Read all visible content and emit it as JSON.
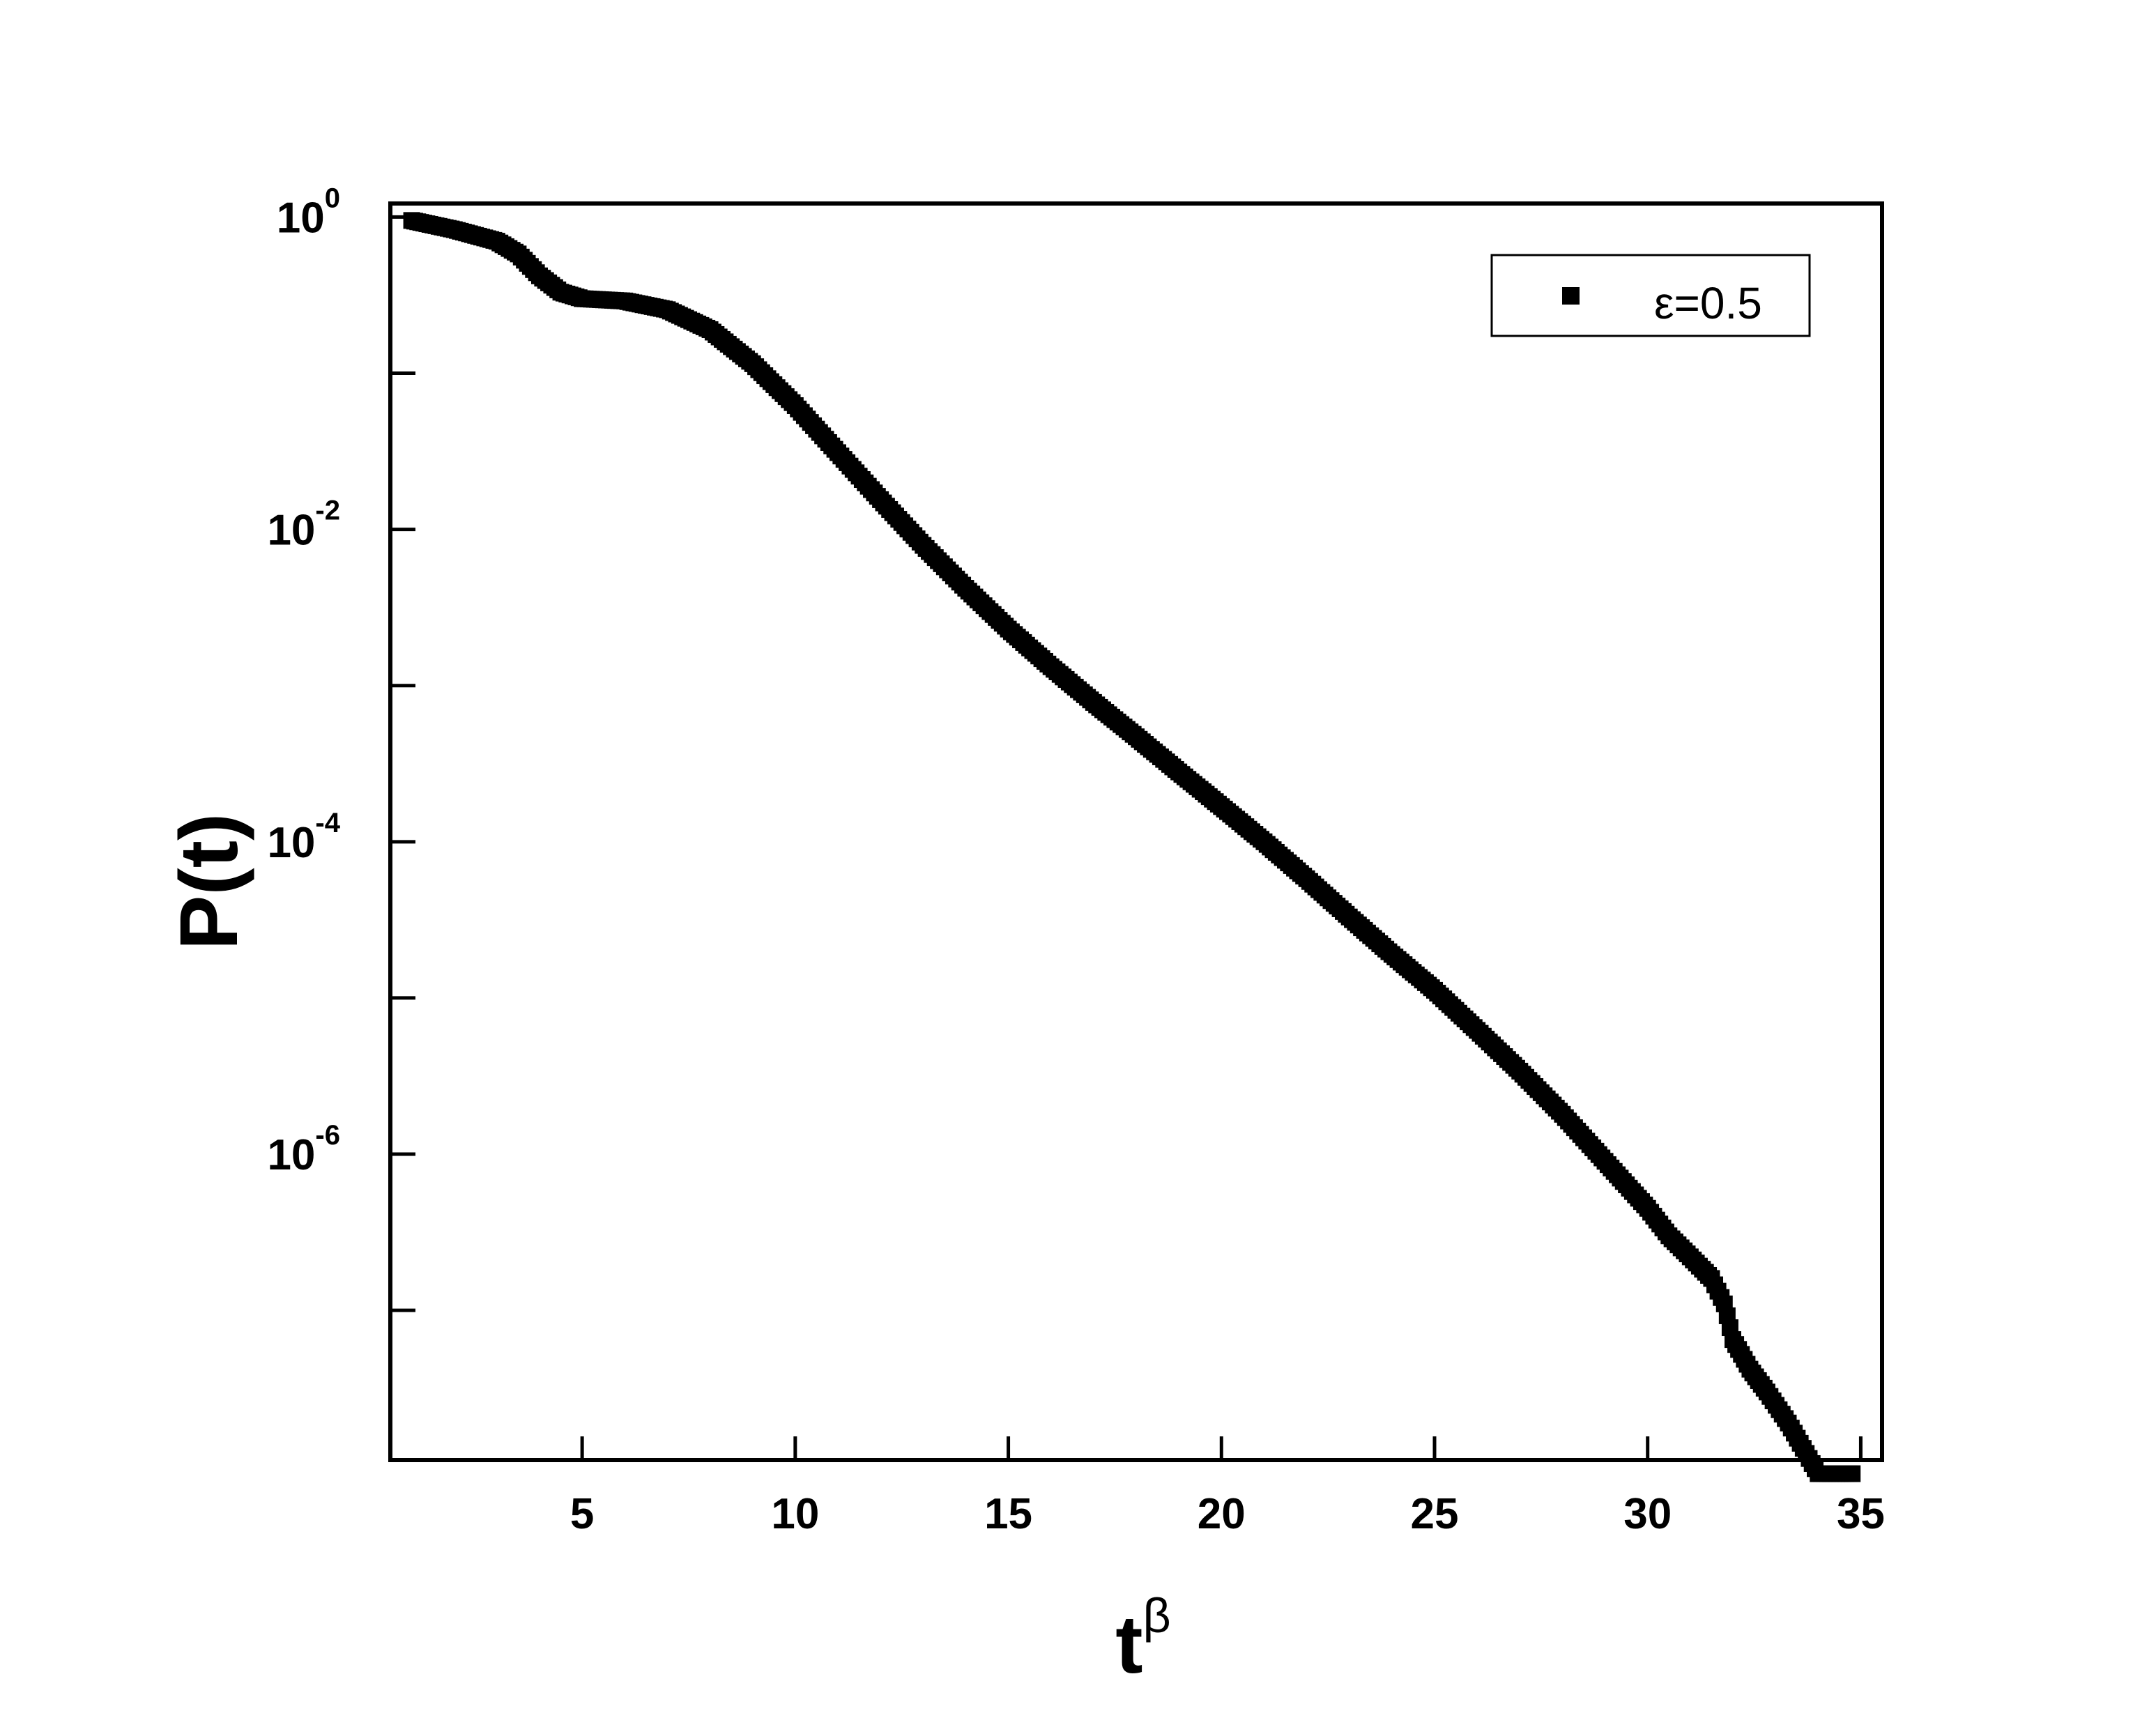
{
  "chart_data": {
    "type": "scatter",
    "title": "",
    "xlabel": {
      "base": "t",
      "superscript": "β"
    },
    "ylabel": "P(t)",
    "xlim": [
      0.5,
      35.5
    ],
    "ylim": [
      1.1e-08,
      1.22
    ],
    "yscale": "log",
    "grid": false,
    "legend_position": "top-right",
    "marker_color": "#000000",
    "x_ticks": [
      {
        "value": 5,
        "label": "5"
      },
      {
        "value": 10,
        "label": "10"
      },
      {
        "value": 15,
        "label": "15"
      },
      {
        "value": 20,
        "label": "20"
      },
      {
        "value": 25,
        "label": "25"
      },
      {
        "value": 30,
        "label": "30"
      },
      {
        "value": 35,
        "label": "35"
      }
    ],
    "y_major_ticks": [
      {
        "value": 1,
        "base": "10",
        "exponent": "0"
      },
      {
        "value": 0.01,
        "base": "10",
        "exponent": "-2"
      },
      {
        "value": 0.0001,
        "base": "10",
        "exponent": "-4"
      },
      {
        "value": 1e-06,
        "base": "10",
        "exponent": "-6"
      }
    ],
    "y_minor_ticks": [
      0.1,
      0.001,
      1e-05,
      1e-07
    ],
    "series": [
      {
        "name": "ε=0.5",
        "marker": "square",
        "x": [
          1.0,
          2.0,
          3.0,
          3.5,
          4.0,
          4.5,
          5.0,
          6.0,
          7.0,
          8.0,
          9.0,
          10.0,
          11.0,
          12.0,
          13.0,
          14.0,
          15.0,
          16.0,
          17.0,
          18.0,
          19.0,
          20.0,
          21.0,
          22.0,
          23.0,
          24.0,
          25.0,
          26.0,
          27.0,
          28.0,
          29.0,
          30.0,
          30.5,
          31.0,
          31.5,
          31.8,
          32.0,
          32.4,
          32.8,
          33.3,
          34.0,
          34.8
        ],
        "y": [
          0.95,
          0.83,
          0.7,
          0.58,
          0.42,
          0.33,
          0.3,
          0.29,
          0.255,
          0.19,
          0.115,
          0.062,
          0.031,
          0.0155,
          0.0079,
          0.0042,
          0.0023,
          0.00132,
          0.00078,
          0.00047,
          0.00028,
          0.000168,
          0.0001,
          5.8e-05,
          3.3e-05,
          1.9e-05,
          1.12e-05,
          6.2e-06,
          3.4e-06,
          1.8e-06,
          9e-07,
          4.5e-07,
          3e-07,
          2.2e-07,
          1.6e-07,
          1.1e-07,
          6.5e-08,
          4.2e-08,
          3e-08,
          1.9e-08,
          9e-09,
          9e-09
        ]
      }
    ]
  }
}
